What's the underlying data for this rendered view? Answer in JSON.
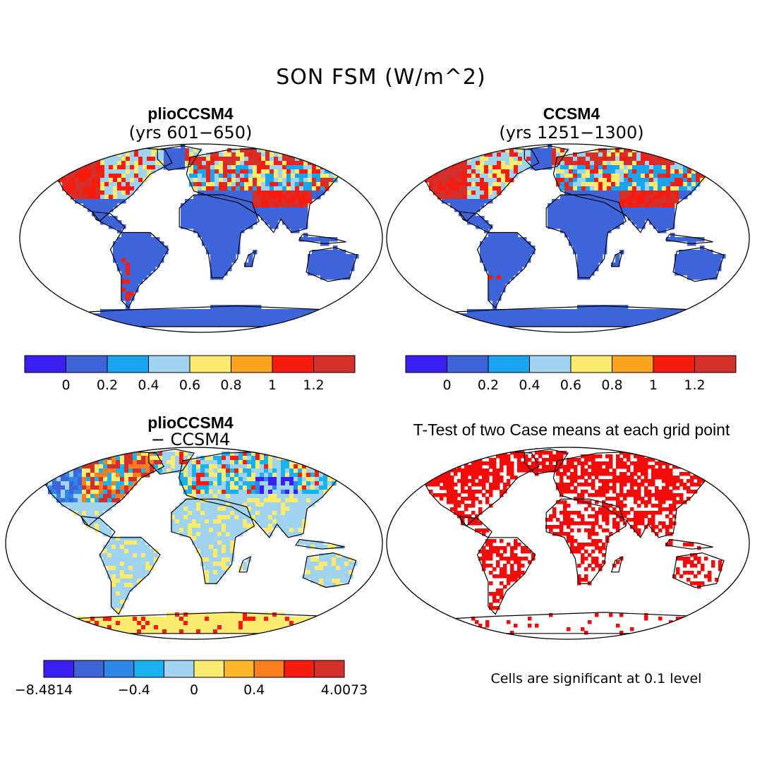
{
  "title": "SON FSM (W/m^2)",
  "colors": {
    "bins_abs": [
      "#3b1ff2",
      "#3e64d9",
      "#1aa3ef",
      "#9fd3ef",
      "#fbeb6e",
      "#f9a21d",
      "#f81b0f",
      "#d3302c"
    ],
    "bins_diff": [
      "#3b1ff2",
      "#3e64d9",
      "#2e86e8",
      "#1ab1f0",
      "#9fd3ef",
      "#fbeb6e",
      "#fbb728",
      "#f97e1e",
      "#f81b0f",
      "#d3302c"
    ],
    "significant": "#f50a0a",
    "land_base": "#3e64d9"
  },
  "panels": {
    "plio": {
      "title": "plioCCSM4",
      "subtitle": "(yrs 601−650)",
      "colorbar": {
        "labels": [
          "0",
          "0.2",
          "0.4",
          "0.6",
          "0.8",
          "1",
          "1.2"
        ]
      }
    },
    "ccsm4": {
      "title": "CCSM4",
      "subtitle": "(yrs 1251−1300)",
      "colorbar": {
        "labels": [
          "0",
          "0.2",
          "0.4",
          "0.6",
          "0.8",
          "1",
          "1.2"
        ]
      }
    },
    "diff": {
      "title": "plioCCSM4",
      "subtitle": "− CCSM4",
      "colorbar": {
        "labels": [
          "−8.4814",
          "−0.4",
          "0",
          "0.4",
          "4.0073"
        ]
      }
    },
    "ttest": {
      "title": "T-Test of two Case means at each grid point",
      "note": "Cells are significant at 0.1 level"
    }
  }
}
